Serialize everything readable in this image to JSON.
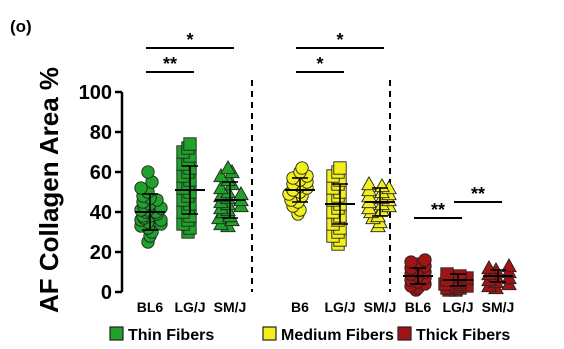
{
  "chart_data": {
    "type": "scatter",
    "panel_label": "(o)",
    "ylabel": "AF Collagen Area %",
    "ylim": [
      0,
      100
    ],
    "yticks": [
      0,
      20,
      40,
      60,
      80,
      100
    ],
    "groups": [
      {
        "name": "Thin Fibers",
        "color": "#1fa12b",
        "categories": [
          "BL6",
          "LG/J",
          "SM/J"
        ],
        "markers": [
          "circle",
          "square",
          "triangle"
        ],
        "means": [
          40,
          51,
          46
        ],
        "sds": [
          9,
          12,
          9
        ],
        "points": [
          [
            25,
            28,
            30,
            32,
            33,
            34,
            35,
            36,
            36,
            37,
            38,
            38,
            39,
            40,
            40,
            41,
            41,
            42,
            43,
            44,
            45,
            46,
            47,
            48,
            50,
            52,
            55,
            60
          ],
          [
            30,
            32,
            34,
            36,
            38,
            40,
            42,
            44,
            46,
            48,
            50,
            52,
            54,
            56,
            58,
            60,
            62,
            64,
            66,
            68,
            70,
            72,
            74
          ],
          [
            33,
            34,
            36,
            37,
            38,
            40,
            41,
            42,
            43,
            44,
            45,
            46,
            47,
            48,
            49,
            50,
            52,
            54,
            56,
            58,
            60,
            62
          ]
        ]
      },
      {
        "name": "Medium Fibers",
        "color": "#f2ef1a",
        "categories": [
          "B6",
          "LG/J",
          "SM/J"
        ],
        "markers": [
          "circle",
          "square",
          "triangle"
        ],
        "means": [
          51,
          44,
          45
        ],
        "sds": [
          6,
          10,
          7
        ],
        "points": [
          [
            39,
            41,
            43,
            45,
            46,
            48,
            49,
            50,
            51,
            52,
            53,
            54,
            55,
            56,
            57,
            58,
            60,
            62
          ],
          [
            24,
            26,
            28,
            30,
            32,
            34,
            36,
            38,
            40,
            42,
            44,
            46,
            48,
            50,
            52,
            54,
            56,
            58,
            60,
            62
          ],
          [
            33,
            35,
            37,
            38,
            40,
            41,
            42,
            43,
            44,
            45,
            46,
            47,
            48,
            49,
            50,
            51,
            52,
            53,
            54
          ]
        ]
      },
      {
        "name": "Thick Fibers",
        "color": "#a11414",
        "categories": [
          "BL6",
          "LG/J",
          "SM/J"
        ],
        "markers": [
          "circle",
          "square",
          "triangle"
        ],
        "means": [
          8,
          6,
          8
        ],
        "sds": [
          4,
          3,
          3
        ],
        "points": [
          [
            1,
            2,
            3,
            4,
            5,
            6,
            7,
            8,
            9,
            10,
            11,
            12,
            13,
            14,
            15,
            16
          ],
          [
            1,
            1,
            2,
            2,
            3,
            3,
            4,
            4,
            5,
            6,
            7,
            8,
            9
          ],
          [
            2,
            3,
            4,
            5,
            6,
            7,
            8,
            9,
            10,
            11,
            12,
            13
          ]
        ]
      }
    ],
    "significance": [
      {
        "group": 0,
        "from": 0,
        "to": 1,
        "label": "**",
        "level": 1
      },
      {
        "group": 0,
        "from": 0,
        "to": 2,
        "label": "*",
        "level": 2
      },
      {
        "group": 1,
        "from": 0,
        "to": 1,
        "label": "*",
        "level": 1
      },
      {
        "group": 1,
        "from": 0,
        "to": 2,
        "label": "*",
        "level": 2
      },
      {
        "group": 2,
        "from": 0,
        "to": 1,
        "label": "**",
        "level": 1
      },
      {
        "group": 2,
        "from": 1,
        "to": 2,
        "label": "**",
        "level": 2
      }
    ]
  }
}
